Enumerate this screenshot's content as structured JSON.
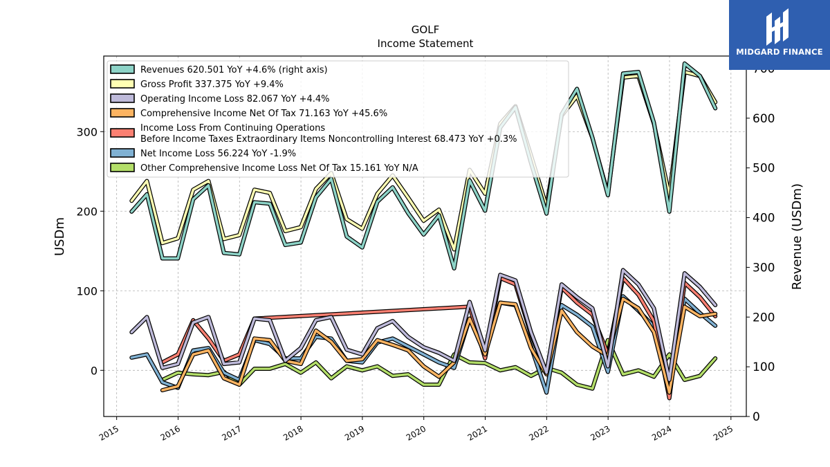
{
  "chart_data": {
    "type": "line",
    "title": "GOLF",
    "subtitle": "Income Statement",
    "ylabel": "USDm",
    "y2label": "Revenue (USDm)",
    "ylim": [
      -58,
      395
    ],
    "y2lim": [
      0,
      725
    ],
    "yticks": [
      0,
      100,
      200,
      300
    ],
    "y2ticks": [
      0,
      100,
      200,
      300,
      400,
      500,
      600,
      700
    ],
    "xlim": [
      2014.79,
      2025.25
    ],
    "xticks": [
      "2015",
      "2016",
      "2017",
      "2018",
      "2019",
      "2020",
      "2021",
      "2022",
      "2023",
      "2024",
      "2025"
    ],
    "grid": true,
    "legend_position": "top-left",
    "series": [
      {
        "name": "Revenues  620.501 YoY +4.6% (right axis)",
        "axis": "right",
        "color": "#8dd3c7",
        "x": [
          "2015-03-31",
          "2015-06-30",
          "2015-09-30",
          "2015-12-31",
          "2016-03-31",
          "2016-06-30",
          "2016-09-30",
          "2016-12-31",
          "2017-03-31",
          "2017-06-30",
          "2017-09-30",
          "2017-12-31",
          "2018-03-31",
          "2018-06-30",
          "2018-09-30",
          "2018-12-31",
          "2019-03-31",
          "2019-06-30",
          "2019-09-30",
          "2019-12-31",
          "2020-03-31",
          "2020-06-30",
          "2020-09-30",
          "2020-12-31",
          "2021-03-31",
          "2021-06-30",
          "2021-09-30",
          "2021-12-31",
          "2022-03-31",
          "2022-06-30",
          "2022-09-30",
          "2022-12-31",
          "2023-03-31",
          "2023-06-30",
          "2023-09-30",
          "2023-12-31",
          "2024-03-31",
          "2024-06-30",
          "2024-09-30"
        ],
        "values": [
          412,
          447,
          318,
          318,
          437,
          465,
          329,
          326,
          431,
          428,
          345,
          350,
          441,
          478,
          362,
          340,
          432,
          461,
          409,
          366,
          405,
          298,
          475,
          414,
          581,
          622,
          510,
          408,
          608,
          659,
          561,
          445,
          690,
          693,
          591,
          412,
          710,
          685,
          620
        ]
      },
      {
        "name": "Gross Profit  337.375 YoY +9.4%",
        "axis": "left",
        "color": "#ffffb3",
        "x": [
          "2015-03-31",
          "2015-06-30",
          "2015-09-30",
          "2015-12-31",
          "2016-03-31",
          "2016-06-30",
          "2016-09-30",
          "2016-12-31",
          "2017-03-31",
          "2017-06-30",
          "2017-09-30",
          "2017-12-31",
          "2018-03-31",
          "2018-06-30",
          "2018-09-30",
          "2018-12-31",
          "2019-03-31",
          "2019-06-30",
          "2019-09-30",
          "2019-12-31",
          "2020-03-31",
          "2020-06-30",
          "2020-09-30",
          "2020-12-31",
          "2021-03-31",
          "2021-06-30",
          "2021-09-30",
          "2021-12-31",
          "2022-03-31",
          "2022-06-30",
          "2022-09-30",
          "2022-12-31",
          "2023-03-31",
          "2023-06-30",
          "2023-09-30",
          "2023-12-31",
          "2024-03-31",
          "2024-06-30",
          "2024-09-30"
        ],
        "values": [
          213,
          238,
          160,
          166,
          227,
          238,
          165,
          170,
          227,
          223,
          175,
          180,
          228,
          248,
          190,
          178,
          222,
          245,
          217,
          188,
          202,
          152,
          252,
          222,
          310,
          332,
          270,
          206,
          320,
          345,
          292,
          222,
          368,
          370,
          310,
          220,
          375,
          370,
          337
        ]
      },
      {
        "name": "Operating Income Loss  82.067 YoY +4.4%",
        "axis": "left",
        "color": "#bebada",
        "x": [
          "2015-03-31",
          "2015-06-30",
          "2015-09-30",
          "2015-12-31",
          "2016-03-31",
          "2016-06-30",
          "2016-09-30",
          "2016-12-31",
          "2017-03-31",
          "2017-06-30",
          "2017-09-30",
          "2017-12-31",
          "2018-03-31",
          "2018-06-30",
          "2018-09-30",
          "2018-12-31",
          "2019-03-31",
          "2019-06-30",
          "2019-09-30",
          "2019-12-31",
          "2020-03-31",
          "2020-06-30",
          "2020-09-30",
          "2020-12-31",
          "2021-03-31",
          "2021-06-30",
          "2021-09-30",
          "2021-12-31",
          "2022-03-31",
          "2022-06-30",
          "2022-09-30",
          "2022-12-31",
          "2023-03-31",
          "2023-06-30",
          "2023-09-30",
          "2023-12-31",
          "2024-03-31",
          "2024-06-30",
          "2024-09-30"
        ],
        "values": [
          48,
          67,
          3,
          8,
          60,
          67,
          8,
          10,
          65,
          63,
          12,
          28,
          63,
          67,
          26,
          20,
          53,
          62,
          42,
          29,
          22,
          12,
          86,
          25,
          120,
          113,
          48,
          -3,
          108,
          92,
          78,
          5,
          126,
          108,
          78,
          -12,
          122,
          105,
          82
        ]
      },
      {
        "name": "Comprehensive Income Net Of Tax  71.163 YoY +45.6%",
        "axis": "left",
        "color": "#fdb462",
        "x": [
          "2015-09-30",
          "2015-12-31",
          "2016-03-31",
          "2016-06-30",
          "2016-09-30",
          "2016-12-31",
          "2017-03-31",
          "2017-06-30",
          "2017-09-30",
          "2017-12-31",
          "2018-03-31",
          "2018-06-30",
          "2018-09-30",
          "2018-12-31",
          "2019-03-31",
          "2019-06-30",
          "2019-09-30",
          "2019-12-31",
          "2020-03-31",
          "2020-06-30",
          "2020-09-30",
          "2020-12-31",
          "2021-03-31",
          "2021-06-30",
          "2021-09-30",
          "2021-12-31",
          "2022-03-31",
          "2022-06-30",
          "2022-09-30",
          "2022-12-31",
          "2023-03-31",
          "2023-06-30",
          "2023-09-30",
          "2023-12-31",
          "2024-03-31",
          "2024-06-30",
          "2024-09-30"
        ],
        "values": [
          -25,
          -20,
          20,
          25,
          -10,
          -18,
          40,
          38,
          12,
          8,
          50,
          36,
          12,
          14,
          38,
          32,
          25,
          5,
          -8,
          10,
          65,
          20,
          85,
          83,
          28,
          -5,
          75,
          48,
          30,
          18,
          90,
          78,
          48,
          -28,
          80,
          68,
          71
        ]
      },
      {
        "name": "Income Loss From Continuing Operations\nBefore Income Taxes Extraordinary Items Noncontrolling Interest  68.473 YoY +0.3%",
        "axis": "left",
        "color": "#fb8072",
        "x": [
          "2015-09-30",
          "2015-12-31",
          "2016-03-31",
          "2016-06-30",
          "2016-09-30",
          "2016-12-31",
          "2017-03-31",
          "2020-09-30",
          "2020-12-31",
          "2021-03-31",
          "2021-06-30",
          "2021-09-30",
          "2021-12-31",
          "2022-03-31",
          "2022-06-30",
          "2022-09-30",
          "2022-12-31",
          "2023-03-31",
          "2023-06-30",
          "2023-09-30",
          "2023-12-31",
          "2024-03-31",
          "2024-06-30",
          "2024-09-30"
        ],
        "values": [
          10,
          20,
          63,
          40,
          12,
          20,
          65,
          80,
          15,
          116,
          108,
          45,
          -3,
          104,
          85,
          70,
          20,
          116,
          95,
          62,
          -35,
          110,
          92,
          68
        ]
      },
      {
        "name": "Net Income Loss  56.224 YoY -1.9%",
        "axis": "left",
        "color": "#80b1d3",
        "x": [
          "2015-03-31",
          "2015-06-30",
          "2015-09-30",
          "2015-12-31",
          "2016-03-31",
          "2016-06-30",
          "2016-09-30",
          "2016-12-31",
          "2017-03-31",
          "2017-06-30",
          "2017-09-30",
          "2017-12-31",
          "2018-03-31",
          "2018-06-30",
          "2018-09-30",
          "2018-12-31",
          "2019-03-31",
          "2019-06-30",
          "2019-09-30",
          "2019-12-31",
          "2020-03-31",
          "2020-06-30",
          "2020-09-30",
          "2020-12-31",
          "2021-03-31",
          "2021-06-30",
          "2021-09-30",
          "2021-12-31",
          "2022-03-31",
          "2022-06-30",
          "2022-09-30",
          "2022-12-31",
          "2023-03-31",
          "2023-06-30",
          "2023-09-30",
          "2023-12-31",
          "2024-03-31",
          "2024-06-30",
          "2024-09-30"
        ],
        "values": [
          16,
          20,
          -15,
          -22,
          25,
          28,
          -3,
          -12,
          38,
          33,
          15,
          15,
          42,
          40,
          12,
          10,
          35,
          40,
          30,
          20,
          10,
          3,
          65,
          20,
          85,
          82,
          30,
          -28,
          82,
          70,
          55,
          -2,
          93,
          75,
          55,
          -25,
          90,
          72,
          56
        ]
      },
      {
        "name": "Other Comprehensive Income Loss Net Of Tax  15.161 YoY N/A",
        "axis": "left",
        "color": "#b3de69",
        "x": [
          "2015-09-30",
          "2015-12-31",
          "2016-03-31",
          "2016-06-30",
          "2016-09-30",
          "2016-12-31",
          "2017-03-31",
          "2017-06-30",
          "2017-09-30",
          "2017-12-31",
          "2018-03-31",
          "2018-06-30",
          "2018-09-30",
          "2018-12-31",
          "2019-03-31",
          "2019-06-30",
          "2019-09-30",
          "2019-12-31",
          "2020-03-31",
          "2020-06-30",
          "2020-09-30",
          "2020-12-31",
          "2021-03-31",
          "2021-06-30",
          "2021-09-30",
          "2021-12-31",
          "2022-03-31",
          "2022-06-30",
          "2022-09-30",
          "2022-12-31",
          "2023-03-31",
          "2023-06-30",
          "2023-09-30",
          "2023-12-31",
          "2024-03-31",
          "2024-06-30",
          "2024-09-30"
        ],
        "values": [
          -12,
          -3,
          -5,
          -6,
          -2,
          -18,
          2,
          2,
          8,
          -3,
          10,
          -10,
          5,
          0,
          5,
          -7,
          -5,
          -18,
          -18,
          20,
          10,
          9,
          0,
          4,
          -7,
          3,
          -3,
          -18,
          -23,
          38,
          -5,
          0,
          -8,
          20,
          -12,
          -7,
          15
        ]
      }
    ]
  },
  "logo": {
    "text": "MIDGARD FINANCE",
    "background": "#2f5fb0"
  }
}
